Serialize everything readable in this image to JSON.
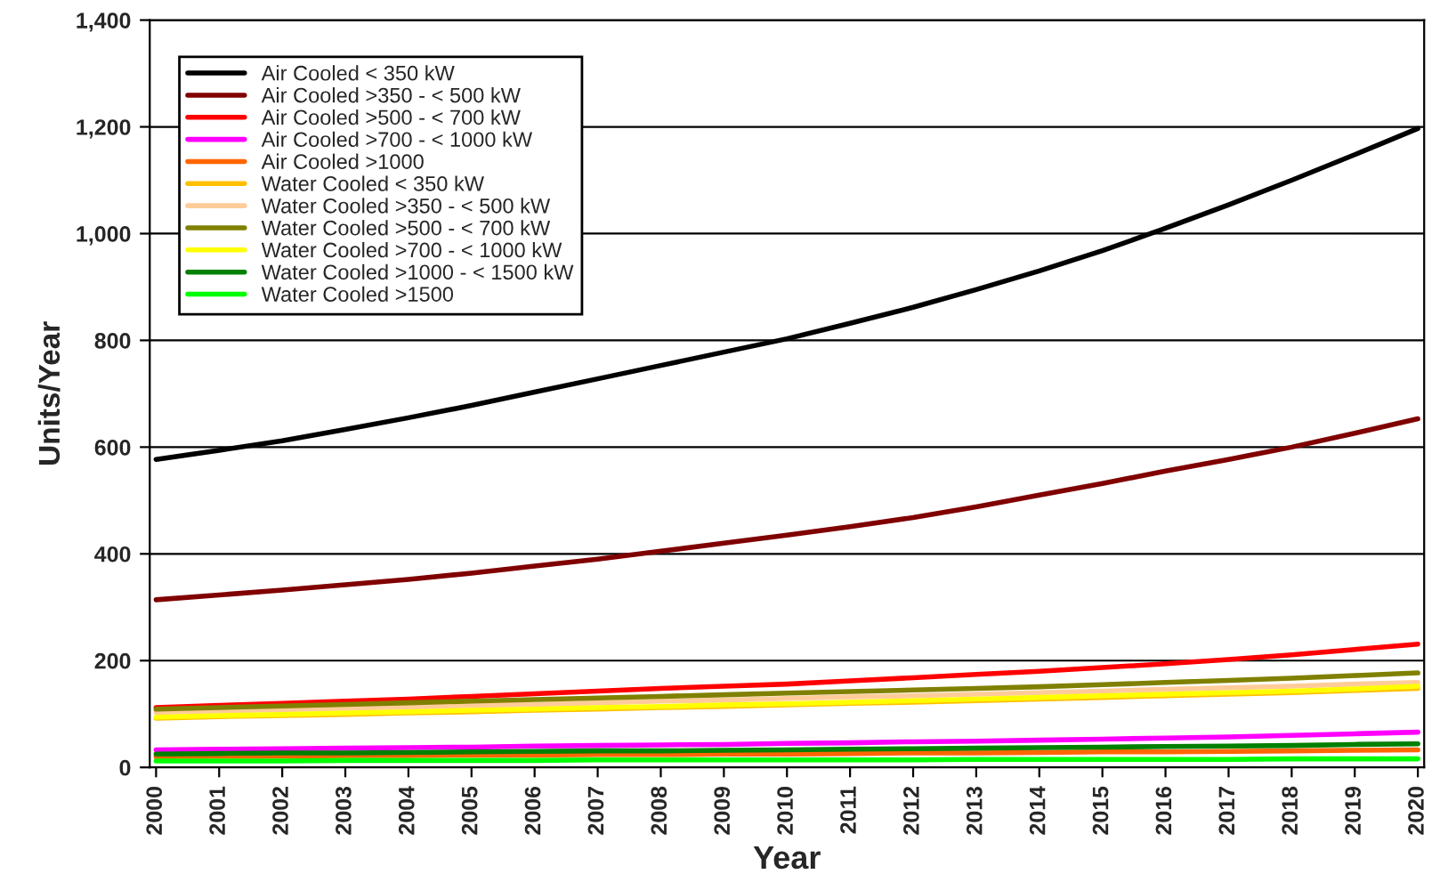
{
  "chart_data": {
    "type": "line",
    "xlabel": "Year",
    "ylabel": "Units/Year",
    "categories": [
      "2000",
      "2001",
      "2002",
      "2003",
      "2004",
      "2005",
      "2006",
      "2007",
      "2008",
      "2009",
      "2010",
      "2011",
      "2012",
      "2013",
      "2014",
      "2015",
      "2016",
      "2017",
      "2018",
      "2019",
      "2020"
    ],
    "ylim": [
      0,
      1400
    ],
    "yticks": [
      0,
      200,
      400,
      600,
      800,
      {
        "value": 1000,
        "label": "1,000"
      },
      {
        "value": 1200,
        "label": "1,200"
      },
      {
        "value": 1400,
        "label": "1,400"
      }
    ],
    "grid": "y",
    "legend": "top left",
    "marker": "none",
    "line_style": "solid",
    "series": [
      {
        "name": "Air Cooled < 350 kW",
        "color": "#000000",
        "values": [
          577,
          594,
          612,
          633,
          655,
          678,
          703,
          728,
          753,
          778,
          803,
          832,
          862,
          895,
          930,
          968,
          1010,
          1054,
          1100,
          1148,
          1197
        ]
      },
      {
        "name": "Air Cooled >350 - < 500 kW",
        "color": "#800000",
        "values": [
          314,
          323,
          332,
          342,
          352,
          364,
          377,
          390,
          405,
          420,
          435,
          451,
          468,
          488,
          510,
          532,
          555,
          577,
          600,
          626,
          653
        ]
      },
      {
        "name": "Air Cooled >500 - < 700 kW",
        "color": "#ff0000",
        "values": [
          112,
          116,
          120,
          124,
          128,
          133,
          138,
          143,
          148,
          152,
          156,
          162,
          168,
          174,
          180,
          187,
          194,
          202,
          211,
          221,
          231
        ]
      },
      {
        "name": "Air Cooled >700 - < 1000 kW",
        "color": "#ff00ff",
        "values": [
          33,
          34,
          35,
          36,
          37,
          38,
          40,
          41,
          42,
          43,
          45,
          46,
          48,
          49,
          51,
          53,
          55,
          57,
          60,
          63,
          66
        ]
      },
      {
        "name": "Air Cooled >1000",
        "color": "#ff6600",
        "values": [
          20,
          21,
          21,
          22,
          22,
          23,
          23,
          24,
          24,
          25,
          25,
          26,
          27,
          27,
          28,
          29,
          29,
          30,
          31,
          32,
          33
        ]
      },
      {
        "name": "Water Cooled < 350 kW",
        "color": "#ffc000",
        "values": [
          92,
          95,
          97,
          99,
          102,
          104,
          107,
          109,
          112,
          114,
          117,
          120,
          122,
          125,
          128,
          131,
          134,
          137,
          140,
          144,
          148
        ]
      },
      {
        "name": "Water Cooled >350 - < 500 kW",
        "color": "#ffcc99",
        "values": [
          103,
          106,
          108,
          111,
          113,
          116,
          118,
          121,
          124,
          126,
          129,
          132,
          134,
          137,
          140,
          143,
          146,
          149,
          152,
          156,
          159
        ]
      },
      {
        "name": "Water Cooled >500 - < 700 kW",
        "color": "#808000",
        "values": [
          109,
          112,
          115,
          118,
          121,
          124,
          127,
          130,
          133,
          136,
          139,
          142,
          145,
          148,
          151,
          155,
          159,
          163,
          167,
          172,
          177
        ]
      },
      {
        "name": "Water Cooled >700 - < 1000 kW",
        "color": "#ffff00",
        "values": [
          94,
          97,
          99,
          102,
          104,
          107,
          109,
          112,
          114,
          117,
          119,
          122,
          125,
          128,
          131,
          134,
          137,
          140,
          143,
          147,
          152
        ]
      },
      {
        "name": "Water Cooled >1000 - < 1500 kW",
        "color": "#008000",
        "values": [
          25,
          26,
          27,
          27,
          28,
          29,
          30,
          31,
          31,
          32,
          33,
          34,
          35,
          36,
          37,
          38,
          39,
          40,
          41,
          43,
          44
        ]
      },
      {
        "name": "Water Cooled >1500",
        "color": "#00ff00",
        "values": [
          12,
          12,
          12,
          13,
          13,
          13,
          13,
          14,
          14,
          14,
          14,
          14,
          14,
          15,
          15,
          15,
          15,
          15,
          16,
          16,
          16
        ]
      }
    ]
  }
}
